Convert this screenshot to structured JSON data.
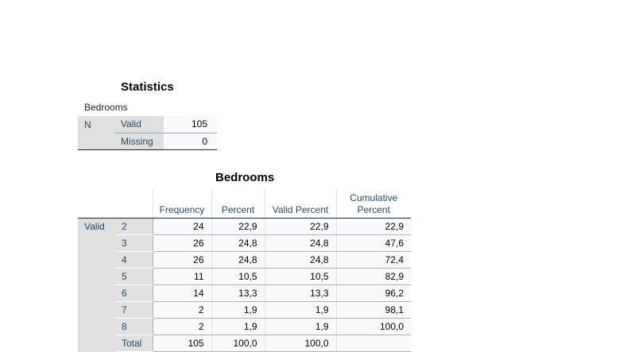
{
  "statistics": {
    "title": "Statistics",
    "variable": "Bedrooms",
    "n_label": "N",
    "rows": [
      {
        "label": "Valid",
        "value": "105"
      },
      {
        "label": "Missing",
        "value": "0"
      }
    ]
  },
  "frequency": {
    "title": "Bedrooms",
    "headers": {
      "frequency": "Frequency",
      "percent": "Percent",
      "valid_percent": "Valid Percent",
      "cumulative_line1": "Cumulative",
      "cumulative_line2": "Percent"
    },
    "group_label": "Valid",
    "rows": [
      {
        "category": "2",
        "frequency": "24",
        "percent": "22,9",
        "valid_percent": "22,9",
        "cumulative": "22,9"
      },
      {
        "category": "3",
        "frequency": "26",
        "percent": "24,8",
        "valid_percent": "24,8",
        "cumulative": "47,6"
      },
      {
        "category": "4",
        "frequency": "26",
        "percent": "24,8",
        "valid_percent": "24,8",
        "cumulative": "72,4"
      },
      {
        "category": "5",
        "frequency": "11",
        "percent": "10,5",
        "valid_percent": "10,5",
        "cumulative": "82,9"
      },
      {
        "category": "6",
        "frequency": "14",
        "percent": "13,3",
        "valid_percent": "13,3",
        "cumulative": "96,2"
      },
      {
        "category": "7",
        "frequency": "2",
        "percent": "1,9",
        "valid_percent": "1,9",
        "cumulative": "98,1"
      },
      {
        "category": "8",
        "frequency": "2",
        "percent": "1,9",
        "valid_percent": "1,9",
        "cumulative": "100,0"
      },
      {
        "category": "Total",
        "frequency": "105",
        "percent": "100,0",
        "valid_percent": "100,0",
        "cumulative": ""
      }
    ]
  }
}
